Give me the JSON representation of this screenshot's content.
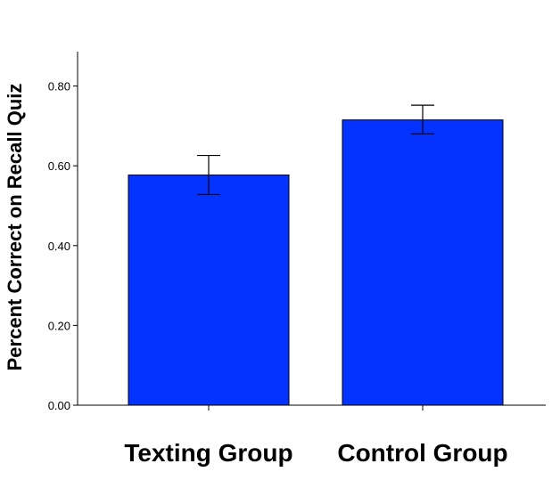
{
  "chart_data": {
    "type": "bar",
    "categories": [
      "Texting Group",
      "Control Group"
    ],
    "values": [
      0.577,
      0.715
    ],
    "error_bars": {
      "lower": [
        0.528,
        0.68
      ],
      "upper": [
        0.626,
        0.752
      ]
    },
    "title": "",
    "xlabel": "",
    "ylabel": "Percent Correct on Recall Quiz",
    "ylim": [
      0,
      0.88
    ],
    "yticks": [
      0.0,
      0.2,
      0.4,
      0.6,
      0.8
    ],
    "ytick_labels": [
      "0.00",
      "0.20",
      "0.40",
      "0.60",
      "0.80"
    ],
    "grid": false,
    "legend": "none",
    "bar_color": "#0433FF",
    "bar_edge_color": "#000000",
    "axis_color": "#000000"
  }
}
